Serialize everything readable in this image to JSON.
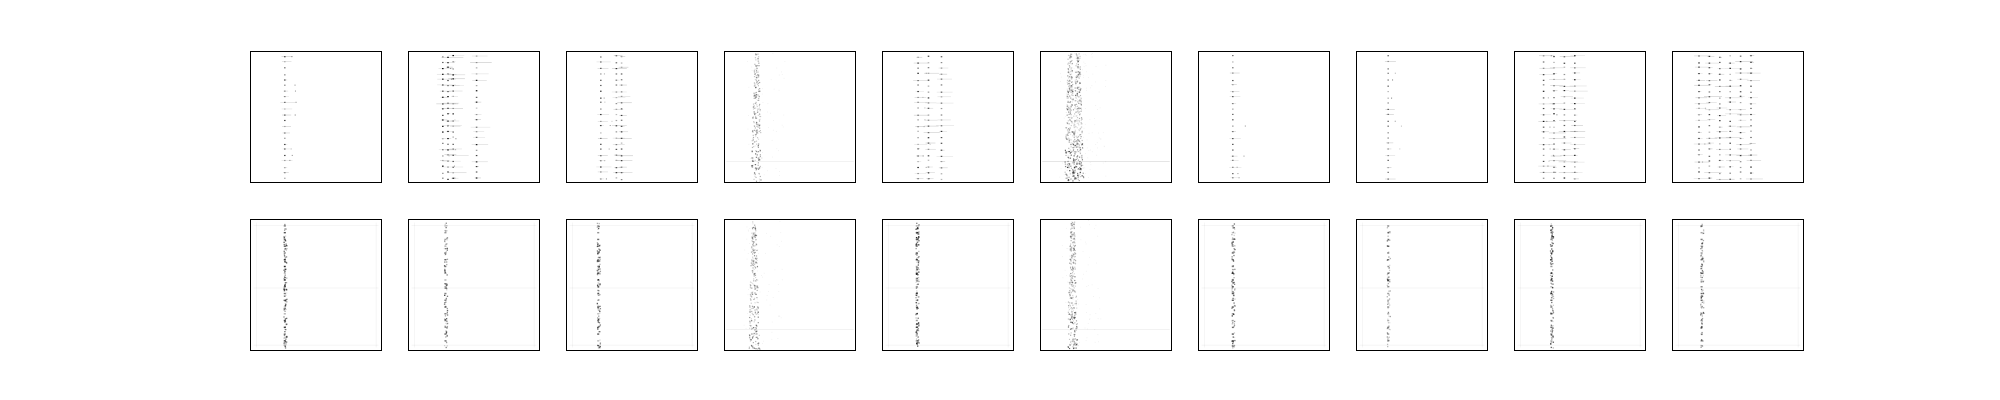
{
  "figure": {
    "background": "#ffffff",
    "frame_color": "#000000",
    "ink_color": "#000000"
  },
  "chart_data": {
    "type": "heatmap",
    "grid": false,
    "colormap": "greys",
    "rows": 2,
    "columns": 10,
    "panels": [
      {
        "row": 0,
        "col": 0,
        "style": "dots",
        "bands": [
          0.26
        ],
        "density": 0.8
      },
      {
        "row": 0,
        "col": 1,
        "style": "dots",
        "bands": [
          0.26,
          0.3,
          0.34,
          0.52
        ],
        "density": 1.3
      },
      {
        "row": 0,
        "col": 2,
        "style": "dots",
        "bands": [
          0.26,
          0.38,
          0.42
        ],
        "density": 0.9
      },
      {
        "row": 0,
        "col": 3,
        "style": "smear",
        "bands": [
          0.24
        ],
        "density": 1.0
      },
      {
        "row": 0,
        "col": 4,
        "style": "dots",
        "bands": [
          0.27,
          0.35,
          0.45
        ],
        "density": 1.0
      },
      {
        "row": 0,
        "col": 5,
        "style": "smear",
        "bands": [
          0.22,
          0.28
        ],
        "density": 1.2
      },
      {
        "row": 0,
        "col": 6,
        "style": "dots",
        "bands": [
          0.26
        ],
        "density": 0.7
      },
      {
        "row": 0,
        "col": 7,
        "style": "dots",
        "bands": [
          0.24
        ],
        "density": 0.6
      },
      {
        "row": 0,
        "col": 8,
        "style": "dots",
        "bands": [
          0.22,
          0.3,
          0.38,
          0.46
        ],
        "density": 1.1
      },
      {
        "row": 0,
        "col": 9,
        "style": "dots",
        "bands": [
          0.2,
          0.28,
          0.36,
          0.44,
          0.52,
          0.6
        ],
        "density": 1.0
      },
      {
        "row": 1,
        "col": 0,
        "style": "soft",
        "bands": [
          0.26
        ],
        "density": 1.0
      },
      {
        "row": 1,
        "col": 1,
        "style": "soft",
        "bands": [
          0.28
        ],
        "density": 0.8
      },
      {
        "row": 1,
        "col": 2,
        "style": "soft",
        "bands": [
          0.24
        ],
        "density": 0.9
      },
      {
        "row": 1,
        "col": 3,
        "style": "smear",
        "bands": [
          0.22
        ],
        "density": 1.1
      },
      {
        "row": 1,
        "col": 4,
        "style": "soft",
        "bands": [
          0.26
        ],
        "density": 1.1
      },
      {
        "row": 1,
        "col": 5,
        "style": "smear",
        "bands": [
          0.24
        ],
        "density": 1.2
      },
      {
        "row": 1,
        "col": 6,
        "style": "soft",
        "bands": [
          0.26
        ],
        "density": 0.9
      },
      {
        "row": 1,
        "col": 7,
        "style": "soft",
        "bands": [
          0.24
        ],
        "density": 0.6
      },
      {
        "row": 1,
        "col": 8,
        "style": "soft",
        "bands": [
          0.28
        ],
        "density": 1.0
      },
      {
        "row": 1,
        "col": 9,
        "style": "soft",
        "bands": [
          0.22
        ],
        "density": 0.8
      }
    ]
  }
}
